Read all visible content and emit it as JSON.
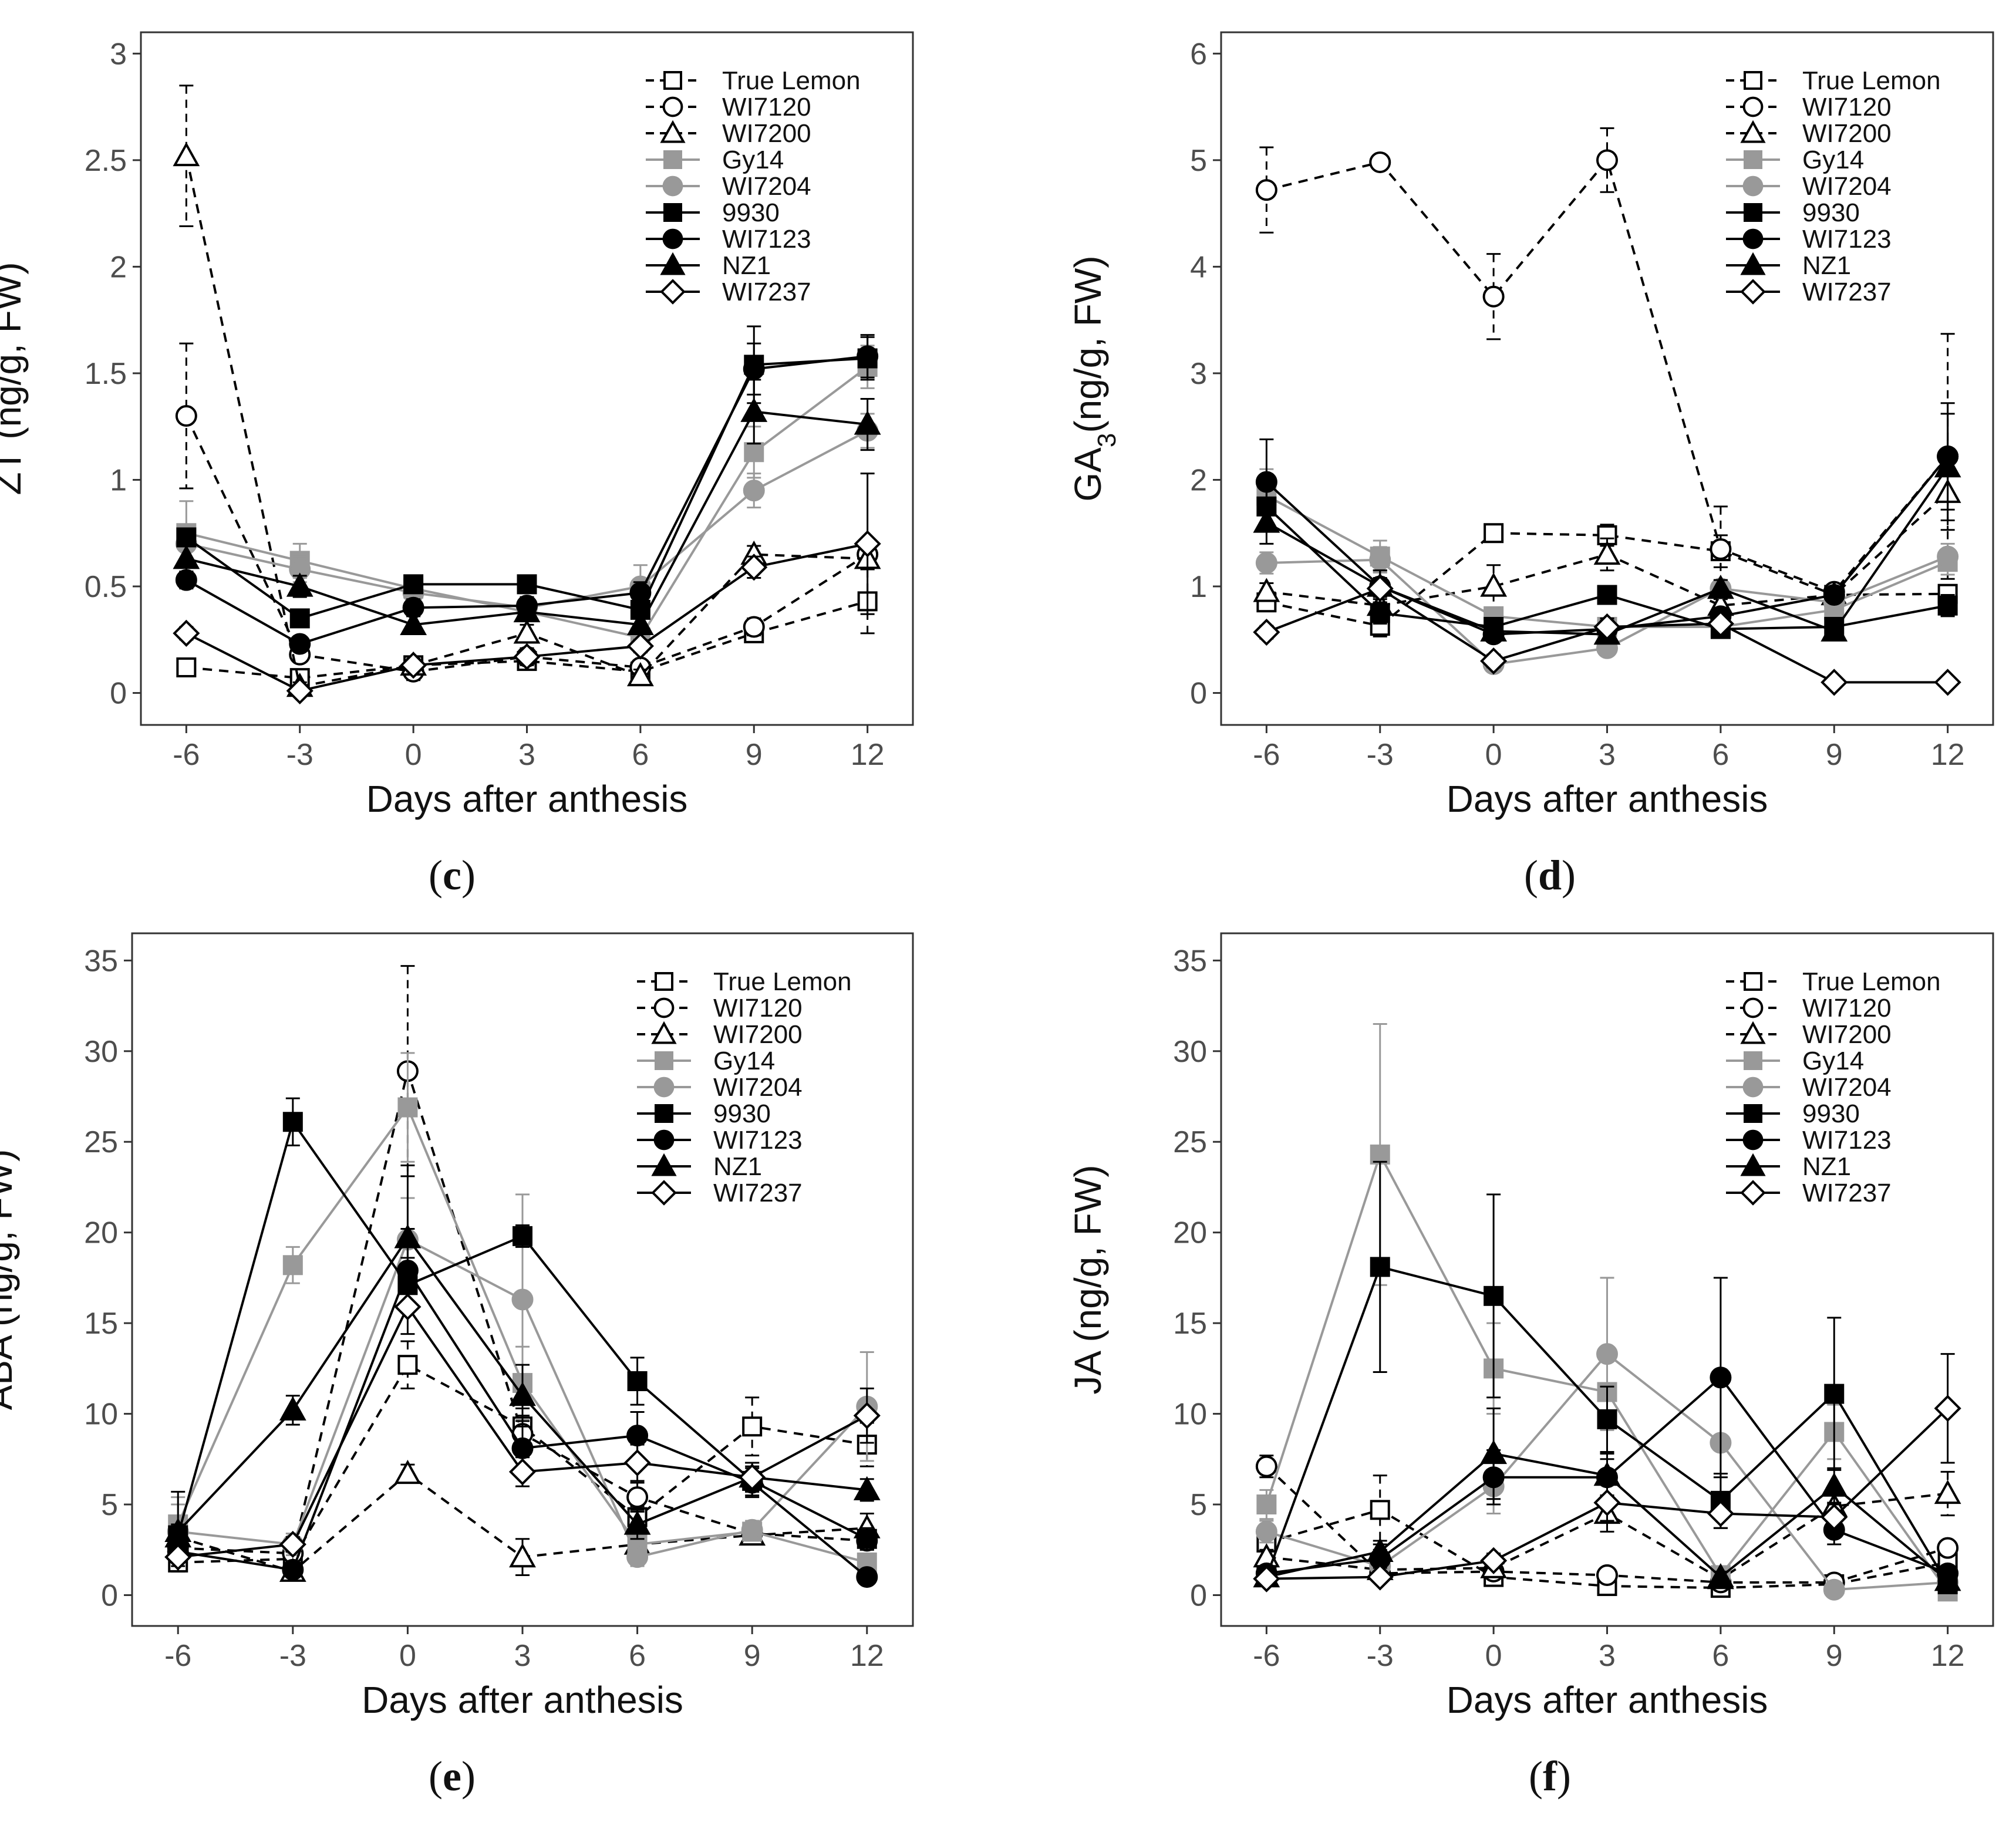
{
  "chart_data": [
    {
      "type": "line",
      "panel_label": "c",
      "ylabel_main": "ZT",
      "ylabel_sub": "",
      "ylabel_rest": " (ng/g, FW)",
      "xlabel": "Days after anthesis",
      "x": [
        -6,
        -3,
        0,
        3,
        6,
        9,
        12
      ],
      "xticks": [
        "-6",
        "-3",
        "0",
        "3",
        "6",
        "9",
        "12"
      ],
      "ylim": [
        -0.15,
        3.1
      ],
      "yticks": [
        0,
        0.5,
        1,
        1.5,
        2,
        2.5,
        3
      ],
      "ytick_labels": [
        "0",
        "0.5",
        "1",
        "1.5",
        "2",
        "2.5",
        "3"
      ],
      "grid": false,
      "legend_position": "top-right",
      "series": [
        {
          "name": "True Lemon",
          "values": [
            0.12,
            0.07,
            0.13,
            0.15,
            0.1,
            0.28,
            0.43
          ],
          "errors": [
            0.03,
            0.03,
            0.03,
            0.03,
            0.03,
            0.03,
            0.15
          ]
        },
        {
          "name": "WI7120",
          "values": [
            1.3,
            0.18,
            0.1,
            0.17,
            0.12,
            0.31,
            0.65
          ],
          "errors": [
            0.34,
            0.03,
            0.04,
            0.04,
            0.03,
            0.04,
            0.05
          ]
        },
        {
          "name": "WI7200",
          "values": [
            2.52,
            0.03,
            0.13,
            0.28,
            0.08,
            0.65,
            0.63
          ],
          "errors": [
            0.33,
            0.02,
            0.04,
            0.04,
            0.03,
            0.04,
            0.05
          ]
        },
        {
          "name": "Gy14",
          "values": [
            0.75,
            0.62,
            0.49,
            0.38,
            0.26,
            1.13,
            1.53
          ],
          "errors": [
            0.15,
            0.08,
            0.04,
            0.04,
            0.03,
            0.12,
            0.1
          ]
        },
        {
          "name": "WI7204",
          "values": [
            0.7,
            0.58,
            0.47,
            0.4,
            0.5,
            0.95,
            1.23
          ],
          "errors": [
            0.08,
            0.06,
            0.05,
            0.04,
            0.1,
            0.08,
            0.08
          ]
        },
        {
          "name": "9930",
          "values": [
            0.73,
            0.35,
            0.51,
            0.51,
            0.39,
            1.54,
            1.57
          ],
          "errors": [
            0.04,
            0.04,
            0.03,
            0.03,
            0.04,
            0.18,
            0.1
          ]
        },
        {
          "name": "WI7123",
          "values": [
            0.53,
            0.23,
            0.4,
            0.41,
            0.47,
            1.52,
            1.58
          ],
          "errors": [
            0.04,
            0.03,
            0.04,
            0.04,
            0.05,
            0.12,
            0.1
          ]
        },
        {
          "name": "NZ1",
          "values": [
            0.63,
            0.5,
            0.32,
            0.38,
            0.32,
            1.32,
            1.26
          ],
          "errors": [
            0.06,
            0.05,
            0.04,
            0.04,
            0.04,
            0.15,
            0.12
          ]
        },
        {
          "name": "WI7237",
          "values": [
            0.28,
            0.01,
            0.13,
            0.17,
            0.22,
            0.59,
            0.7
          ],
          "errors": [
            0.03,
            0.02,
            0.03,
            0.03,
            0.03,
            0.05,
            0.33
          ]
        }
      ]
    },
    {
      "type": "line",
      "panel_label": "d",
      "ylabel_main": "GA",
      "ylabel_sub": "3",
      "ylabel_rest": "(ng/g, FW)",
      "xlabel": "Days after anthesis",
      "x": [
        -6,
        -3,
        0,
        3,
        6,
        9,
        12
      ],
      "xticks": [
        "-6",
        "-3",
        "0",
        "3",
        "6",
        "9",
        "12"
      ],
      "ylim": [
        -0.3,
        6.2
      ],
      "yticks": [
        0,
        1,
        2,
        3,
        4,
        5,
        6
      ],
      "ytick_labels": [
        "0",
        "1",
        "2",
        "3",
        "4",
        "5",
        "6"
      ],
      "grid": false,
      "legend_position": "top-right",
      "series": [
        {
          "name": "True Lemon",
          "values": [
            0.85,
            0.63,
            1.5,
            1.48,
            1.33,
            0.92,
            0.93
          ],
          "errors": [
            0.08,
            0.1,
            0.06,
            0.1,
            0.15,
            0.06,
            0.08
          ]
        },
        {
          "name": "WI7120",
          "values": [
            4.72,
            4.98,
            3.72,
            5.0,
            1.35,
            0.95,
            2.22
          ],
          "errors": [
            0.4,
            0.05,
            0.4,
            0.3,
            0.4,
            0.05,
            1.15
          ]
        },
        {
          "name": "WI7200",
          "values": [
            0.95,
            0.82,
            1.0,
            1.3,
            0.82,
            0.92,
            1.88
          ],
          "errors": [
            0.08,
            0.08,
            0.2,
            0.15,
            0.06,
            0.06,
            0.35
          ]
        },
        {
          "name": "Gy14",
          "values": [
            1.85,
            1.28,
            0.72,
            0.62,
            0.62,
            0.78,
            1.23
          ],
          "errors": [
            0.25,
            0.15,
            0.08,
            0.06,
            0.06,
            0.08,
            0.12
          ]
        },
        {
          "name": "WI7204",
          "values": [
            1.22,
            1.25,
            0.27,
            0.42,
            0.98,
            0.85,
            1.28
          ],
          "errors": [
            0.1,
            0.12,
            0.04,
            0.05,
            0.08,
            0.08,
            0.12
          ]
        },
        {
          "name": "9930",
          "values": [
            1.75,
            0.75,
            0.62,
            0.92,
            0.6,
            0.62,
            0.82
          ],
          "errors": [
            0.2,
            0.1,
            0.06,
            0.06,
            0.06,
            0.08,
            0.1
          ]
        },
        {
          "name": "WI7123",
          "values": [
            1.98,
            1.0,
            0.55,
            0.6,
            0.72,
            0.92,
            2.22
          ],
          "errors": [
            0.4,
            0.15,
            0.06,
            0.08,
            0.08,
            0.06,
            0.5
          ]
        },
        {
          "name": "NZ1",
          "values": [
            1.6,
            1.0,
            0.58,
            0.55,
            0.98,
            0.58,
            2.12
          ],
          "errors": [
            0.2,
            0.15,
            0.06,
            0.06,
            0.08,
            0.06,
            0.5
          ]
        },
        {
          "name": "WI7237",
          "values": [
            0.57,
            0.98,
            0.3,
            0.62,
            0.65,
            0.1,
            0.1
          ],
          "errors": [
            0.06,
            0.1,
            0.06,
            0.08,
            0.06,
            0.02,
            0.02
          ]
        }
      ]
    },
    {
      "type": "line",
      "panel_label": "e",
      "ylabel_main": "ABA",
      "ylabel_sub": "",
      "ylabel_rest": " (ng/g, FW)",
      "xlabel": "Days after anthesis",
      "x": [
        -6,
        -3,
        0,
        3,
        6,
        9,
        12
      ],
      "xticks": [
        "-6",
        "-3",
        "0",
        "3",
        "6",
        "9",
        "12"
      ],
      "ylim": [
        -1.7,
        36.5
      ],
      "yticks": [
        0,
        5,
        10,
        15,
        20,
        25,
        30,
        35
      ],
      "ytick_labels": [
        "0",
        "5",
        "10",
        "15",
        "20",
        "25",
        "30",
        "35"
      ],
      "grid": false,
      "legend_position": "top-right",
      "series": [
        {
          "name": "True Lemon",
          "values": [
            1.8,
            2.0,
            12.7,
            9.3,
            4.3,
            9.3,
            8.3
          ],
          "errors": [
            0.4,
            0.4,
            1.3,
            1.0,
            0.6,
            1.6,
            1.2
          ]
        },
        {
          "name": "WI7120",
          "values": [
            2.6,
            2.3,
            28.9,
            8.9,
            5.4,
            3.4,
            3.0
          ],
          "errors": [
            0.5,
            0.4,
            5.8,
            1.0,
            0.8,
            0.5,
            0.5
          ]
        },
        {
          "name": "WI7200",
          "values": [
            3.2,
            1.3,
            6.7,
            2.1,
            2.8,
            3.3,
            3.7
          ],
          "errors": [
            0.5,
            0.3,
            0.5,
            1.0,
            0.5,
            0.5,
            0.8
          ]
        },
        {
          "name": "Gy14",
          "values": [
            3.9,
            18.2,
            26.9,
            11.7,
            2.8,
            3.5,
            1.8
          ],
          "errors": [
            1.5,
            1.0,
            3.0,
            2.0,
            0.6,
            0.5,
            0.5
          ]
        },
        {
          "name": "WI7204",
          "values": [
            3.5,
            2.8,
            19.6,
            16.3,
            2.1,
            3.6,
            10.4
          ],
          "errors": [
            1.5,
            0.6,
            2.3,
            5.8,
            0.5,
            0.5,
            3.0
          ]
        },
        {
          "name": "9930",
          "values": [
            3.3,
            26.1,
            17.1,
            19.8,
            11.8,
            6.3,
            3.1
          ],
          "errors": [
            0.6,
            1.3,
            1.5,
            0.6,
            1.3,
            0.8,
            0.6
          ]
        },
        {
          "name": "WI7123",
          "values": [
            2.4,
            1.4,
            17.9,
            8.1,
            8.8,
            6.2,
            1.0
          ],
          "errors": [
            0.4,
            0.3,
            2.3,
            1.5,
            1.3,
            0.8,
            0.3
          ]
        },
        {
          "name": "NZ1",
          "values": [
            3.5,
            10.2,
            19.7,
            11.0,
            3.9,
            6.5,
            5.8
          ],
          "errors": [
            2.2,
            0.8,
            4.0,
            1.7,
            0.8,
            0.8,
            0.6
          ]
        },
        {
          "name": "WI7237",
          "values": [
            2.1,
            2.8,
            15.9,
            6.8,
            7.3,
            6.5,
            9.9
          ],
          "errors": [
            0.5,
            0.4,
            1.5,
            0.8,
            1.0,
            0.8,
            1.5
          ]
        }
      ]
    },
    {
      "type": "line",
      "panel_label": "f",
      "ylabel_main": "JA",
      "ylabel_sub": "",
      "ylabel_rest": " (ng/g, FW)",
      "xlabel": "Days after anthesis",
      "x": [
        -6,
        -3,
        0,
        3,
        6,
        9,
        12
      ],
      "xticks": [
        "-6",
        "-3",
        "0",
        "3",
        "6",
        "9",
        "12"
      ],
      "ylim": [
        -1.7,
        36.5
      ],
      "yticks": [
        0,
        5,
        10,
        15,
        20,
        25,
        30,
        35
      ],
      "ytick_labels": [
        "0",
        "5",
        "10",
        "15",
        "20",
        "25",
        "30",
        "35"
      ],
      "grid": false,
      "legend_position": "top-right",
      "series": [
        {
          "name": "True Lemon",
          "values": [
            2.9,
            4.7,
            1.0,
            0.5,
            0.4,
            0.6,
            1.8
          ],
          "errors": [
            0.4,
            1.9,
            0.3,
            0.2,
            0.2,
            0.2,
            0.4
          ]
        },
        {
          "name": "WI7120",
          "values": [
            7.1,
            1.2,
            1.3,
            1.1,
            0.7,
            0.7,
            2.6
          ],
          "errors": [
            0.6,
            0.4,
            0.3,
            0.3,
            0.2,
            0.2,
            0.4
          ]
        },
        {
          "name": "WI7200",
          "values": [
            2.1,
            1.4,
            1.5,
            4.5,
            0.9,
            4.9,
            5.6
          ],
          "errors": [
            0.4,
            0.4,
            0.4,
            1.0,
            0.3,
            1.0,
            1.2
          ]
        },
        {
          "name": "Gy14",
          "values": [
            5.0,
            24.3,
            12.5,
            11.2,
            1.1,
            9.0,
            0.2
          ],
          "errors": [
            0.8,
            7.2,
            2.5,
            6.3,
            0.4,
            1.5,
            0.2
          ]
        },
        {
          "name": "WI7204",
          "values": [
            3.5,
            1.6,
            6.0,
            13.3,
            8.4,
            0.3,
            0.7
          ],
          "errors": [
            0.6,
            0.5,
            1.5,
            4.2,
            4.0,
            0.2,
            0.3
          ]
        },
        {
          "name": "9930",
          "values": [
            1.0,
            18.1,
            16.5,
            9.7,
            5.2,
            11.1,
            0.6
          ],
          "errors": [
            0.3,
            5.8,
            5.6,
            1.8,
            1.5,
            4.2,
            0.3
          ]
        },
        {
          "name": "WI7123",
          "values": [
            1.2,
            2.0,
            6.5,
            6.5,
            12.0,
            3.6,
            1.2
          ],
          "errors": [
            0.3,
            0.5,
            1.5,
            1.0,
            5.5,
            0.8,
            0.4
          ]
        },
        {
          "name": "NZ1",
          "values": [
            1.0,
            2.4,
            7.8,
            6.6,
            1.0,
            6.0,
            0.8
          ],
          "errors": [
            0.3,
            0.6,
            2.5,
            1.2,
            0.3,
            1.0,
            0.3
          ]
        },
        {
          "name": "WI7237",
          "values": [
            0.9,
            1.0,
            1.9,
            5.1,
            4.5,
            4.3,
            10.3
          ],
          "errors": [
            0.2,
            0.3,
            0.4,
            1.0,
            0.8,
            0.8,
            3.0
          ]
        }
      ]
    }
  ],
  "legend": [
    {
      "name": "True Lemon",
      "marker": "square",
      "fill": "none",
      "color": "#000000",
      "dash": true
    },
    {
      "name": "WI7120",
      "marker": "circle",
      "fill": "none",
      "color": "#000000",
      "dash": true
    },
    {
      "name": "WI7200",
      "marker": "triangle",
      "fill": "none",
      "color": "#000000",
      "dash": true
    },
    {
      "name": "Gy14",
      "marker": "square",
      "fill": "solid",
      "color": "#999999",
      "dash": false
    },
    {
      "name": "WI7204",
      "marker": "circle",
      "fill": "solid",
      "color": "#999999",
      "dash": false
    },
    {
      "name": "9930",
      "marker": "square",
      "fill": "solid",
      "color": "#000000",
      "dash": false
    },
    {
      "name": "WI7123",
      "marker": "circle",
      "fill": "solid",
      "color": "#000000",
      "dash": false
    },
    {
      "name": "NZ1",
      "marker": "triangle",
      "fill": "solid",
      "color": "#000000",
      "dash": false
    },
    {
      "name": "WI7237",
      "marker": "diamond",
      "fill": "none",
      "color": "#000000",
      "dash": false
    }
  ]
}
